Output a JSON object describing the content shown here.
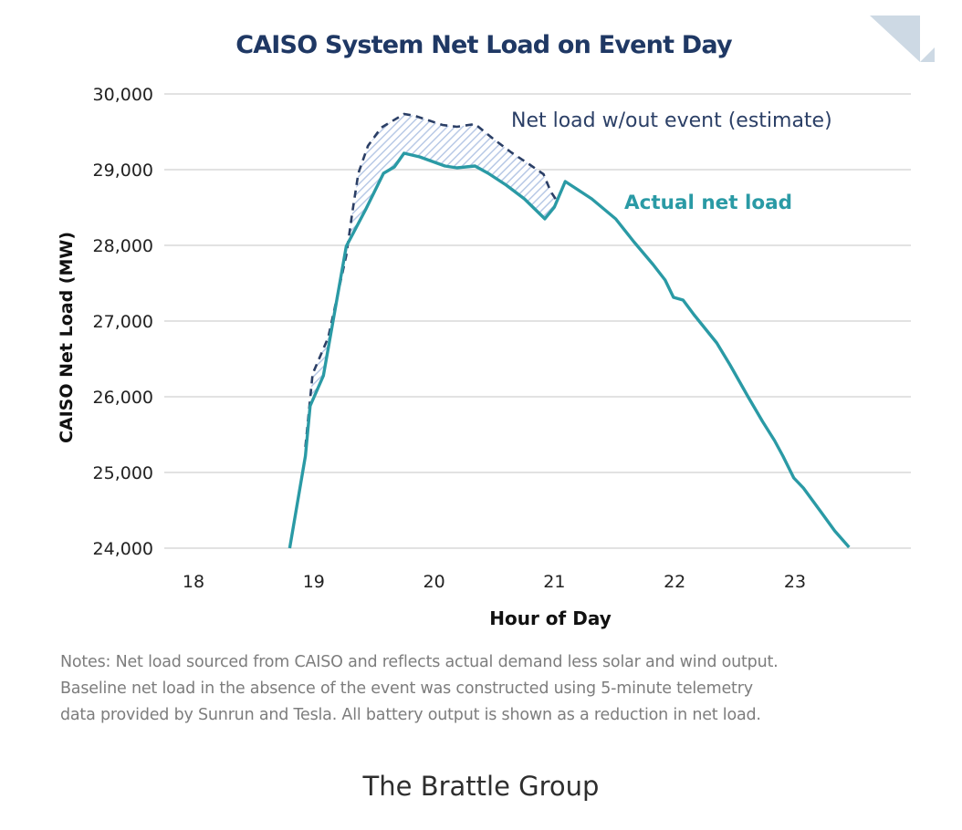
{
  "chart_data": {
    "type": "line",
    "title": "CAISO System Net Load on Event Day",
    "xlabel": "Hour of Day",
    "ylabel": "CAISO Net Load (MW)",
    "xlim": [
      18,
      24.1
    ],
    "ylim": [
      24000,
      30000
    ],
    "xticks": [
      18,
      19,
      20,
      21,
      22,
      23
    ],
    "xtick_labels": [
      "18",
      "19",
      "20",
      "21",
      "22",
      "23"
    ],
    "yticks": [
      24000,
      25000,
      26000,
      27000,
      28000,
      29000,
      30000
    ],
    "ytick_labels": [
      "24,000",
      "25,000",
      "26,000",
      "27,000",
      "28,000",
      "29,000",
      "30,000"
    ],
    "grid": "horizontal",
    "series": [
      {
        "name": "Actual net load",
        "style": "solid",
        "color": "#2a9aa5",
        "points": [
          [
            18.8,
            24000
          ],
          [
            18.93,
            25217
          ],
          [
            18.97,
            25880
          ],
          [
            19.08,
            26277
          ],
          [
            19.27,
            27988
          ],
          [
            19.43,
            28470
          ],
          [
            19.58,
            28952
          ],
          [
            19.67,
            29036
          ],
          [
            19.75,
            29217
          ],
          [
            19.88,
            29169
          ],
          [
            20.09,
            29048
          ],
          [
            20.19,
            29024
          ],
          [
            20.34,
            29048
          ],
          [
            20.45,
            28952
          ],
          [
            20.6,
            28795
          ],
          [
            20.75,
            28614
          ],
          [
            20.92,
            28350
          ],
          [
            21.0,
            28506
          ],
          [
            21.09,
            28843
          ],
          [
            21.16,
            28771
          ],
          [
            21.31,
            28614
          ],
          [
            21.51,
            28349
          ],
          [
            21.66,
            28048
          ],
          [
            21.82,
            27747
          ],
          [
            21.92,
            27542
          ],
          [
            21.99,
            27313
          ],
          [
            22.07,
            27277
          ],
          [
            22.16,
            27084
          ],
          [
            22.35,
            26711
          ],
          [
            22.46,
            26422
          ],
          [
            22.61,
            26000
          ],
          [
            22.73,
            25675
          ],
          [
            22.83,
            25422
          ],
          [
            22.9,
            25217
          ],
          [
            22.99,
            24928
          ],
          [
            23.07,
            24795
          ],
          [
            23.22,
            24470
          ],
          [
            23.33,
            24229
          ],
          [
            23.45,
            24012
          ]
        ]
      },
      {
        "name": "Net load w/out event (estimate)",
        "style": "dashed",
        "color": "#2b3f66",
        "points": [
          [
            18.93,
            25337
          ],
          [
            18.99,
            26301
          ],
          [
            19.12,
            26783
          ],
          [
            19.27,
            27867
          ],
          [
            19.32,
            28434
          ],
          [
            19.37,
            28952
          ],
          [
            19.45,
            29313
          ],
          [
            19.56,
            29554
          ],
          [
            19.75,
            29735
          ],
          [
            19.84,
            29711
          ],
          [
            20.07,
            29590
          ],
          [
            20.19,
            29566
          ],
          [
            20.34,
            29602
          ],
          [
            20.49,
            29410
          ],
          [
            20.64,
            29229
          ],
          [
            20.79,
            29072
          ],
          [
            20.91,
            28940
          ],
          [
            20.97,
            28711
          ],
          [
            21.02,
            28590
          ],
          [
            21.09,
            28843
          ]
        ]
      }
    ],
    "fill_between": {
      "description": "hatched area between estimate and actual",
      "color": "#b8c9e6"
    },
    "annotations": [
      {
        "text": "Net load w/out event (estimate)",
        "color": "#2b3f66"
      },
      {
        "text": "Actual net load",
        "color": "#2a9aa5"
      }
    ]
  },
  "colors": {
    "title": "#1f3864",
    "grid": "#d9d9d9",
    "decoration": "#cdd9e4"
  },
  "notes": [
    "Notes: Net load sourced from CAISO and reflects actual demand less solar and wind output.",
    "Baseline net load in the absence of the event was constructed using 5-minute telemetry",
    "data provided by Sunrun and Tesla. All battery output is shown as a reduction in net load."
  ],
  "footer": "The Brattle Group"
}
